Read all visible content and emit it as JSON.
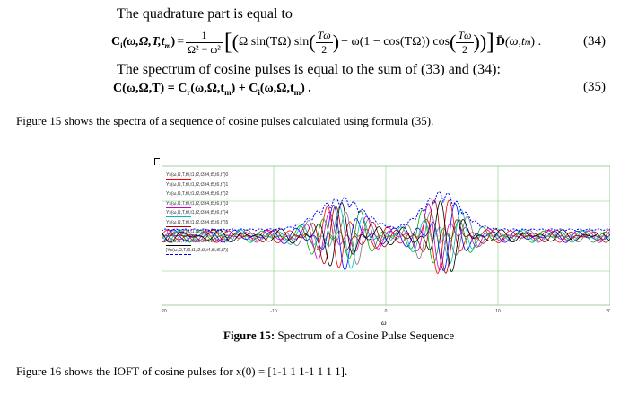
{
  "eq34_intro": "The quadrature part is equal to",
  "eq34_lhs": "C",
  "eq34_lhs_sub": "i",
  "eq34_lhs_args": "(ω,Ω,T,t",
  "eq34_lhs_args_sub": "m",
  "eq34_lhs_args_end": ")",
  "eq34_equals": "=",
  "eq34_frac_num": "1",
  "eq34_frac_den": "Ω² − ω²",
  "eq34_body_1": "Ω sin(TΩ) sin",
  "eq34_inner_num1": "Tω",
  "eq34_inner_den1": "2",
  "eq34_body_2": "− ω(1 − cos(TΩ)) cos",
  "eq34_inner_num2": "Tω",
  "eq34_inner_den2": "2",
  "eq34_d": "D̄",
  "eq34_d_args": "(ω,t",
  "eq34_d_args_sub": "m",
  "eq34_d_args_end": ") .",
  "eq34_number": "(34)",
  "eq35_intro": "The spectrum of cosine pulses is equal to the sum of (33) and (34):",
  "eq35_text": "C(ω,Ω,T) = C",
  "eq35_sub_r": "r",
  "eq35_mid": "(ω,Ω,t",
  "eq35_sub_m1": "m",
  "eq35_mid2": ") + C",
  "eq35_sub_i": "i",
  "eq35_end": "(ω,Ω,t",
  "eq35_sub_m2": "m",
  "eq35_end2": ") .",
  "eq35_number": "(35)",
  "para1": "Figure 15 shows the spectra of a sequence of cosine pulses calculated using formula (35).",
  "figure": {
    "legend": [
      "Ys(ω,Ω,T,t0,t1,t2,t3,t4,t5,t6,t7)0",
      "Ys(ω,Ω,T,t0,t1,t2,t3,t4,t5,t6,t7)1",
      "Ys(ω,Ω,T,t0,t1,t2,t3,t4,t5,t6,t7)2",
      "Ys(ω,Ω,T,t0,t1,t2,t3,t4,t5,t6,t7)3",
      "Ys(ω,Ω,T,t0,t1,t2,t3,t4,t5,t6,t7)4",
      "Ys(ω,Ω,T,t0,t1,t2,t3,t4,t5,t6,t7)5",
      "Ys(ω,Ω,T,t0,t1,t2,t3,t4,t5,t6,t7)6",
      "Ys(ω,Ω,T,t0,t1,t2,t3,t4,t5,t6,t7)7",
      "|Ys(ω,Ω,T,t0,t1,t2,t3,t4,t5,t6,t7)|"
    ],
    "colors": [
      "#ff0000",
      "#00aa00",
      "#0000ff",
      "#cc00cc",
      "#00bbbb",
      "#aa0000",
      "#777777",
      "#000000",
      "#0000ff"
    ],
    "y_ticks": [
      "2",
      "1",
      "0",
      "-1",
      "-2"
    ],
    "x_ticks": [
      "-20",
      "-10",
      "0",
      "10",
      "20"
    ],
    "x_label": "ω",
    "caption_bold": "Figure 15:",
    "caption_text": " Spectrum of a Cosine Pulse Sequence"
  },
  "para2": "Figure 16 shows the IOFT of cosine pulses for x(0) = [1-1 1 1-1 1 1 1]."
}
